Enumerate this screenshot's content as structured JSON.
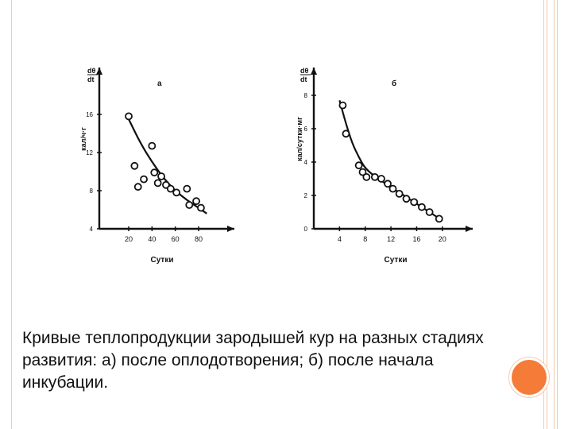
{
  "caption": "Кривые теплопродукции зародышей кур на разных стадиях развития: а) после оплодотворения; б) после начала инкубации.",
  "colors": {
    "accent": "#f47c38",
    "border": "#f5c9ae",
    "ink": "#111111"
  },
  "chart_data": [
    {
      "type": "scatter",
      "title": "а",
      "xlabel": "Сутки",
      "ylabel": "кал/ч·г",
      "ylabel_top": [
        "dθ",
        "dt"
      ],
      "xlim": [
        5,
        95
      ],
      "ylim": [
        4,
        18
      ],
      "x_ticks": [
        20,
        40,
        60,
        80
      ],
      "y_ticks": [
        4,
        8,
        12,
        16
      ],
      "points": [
        {
          "x": 20,
          "y": 15.8
        },
        {
          "x": 25,
          "y": 10.6
        },
        {
          "x": 28,
          "y": 8.4
        },
        {
          "x": 33,
          "y": 9.2
        },
        {
          "x": 40,
          "y": 12.7
        },
        {
          "x": 42,
          "y": 9.9
        },
        {
          "x": 45,
          "y": 8.8
        },
        {
          "x": 48,
          "y": 9.5
        },
        {
          "x": 52,
          "y": 8.6
        },
        {
          "x": 56,
          "y": 8.2
        },
        {
          "x": 61,
          "y": 7.8
        },
        {
          "x": 70,
          "y": 8.2
        },
        {
          "x": 72,
          "y": 6.5
        },
        {
          "x": 78,
          "y": 6.9
        },
        {
          "x": 82,
          "y": 6.2
        }
      ],
      "curve": [
        {
          "x": 20,
          "y": 15.5
        },
        {
          "x": 30,
          "y": 13.0
        },
        {
          "x": 40,
          "y": 11.0
        },
        {
          "x": 50,
          "y": 9.3
        },
        {
          "x": 60,
          "y": 8.0
        },
        {
          "x": 70,
          "y": 7.0
        },
        {
          "x": 80,
          "y": 6.2
        },
        {
          "x": 87,
          "y": 5.6
        }
      ],
      "grid": false
    },
    {
      "type": "scatter",
      "title": "б",
      "xlabel": "Сутки",
      "ylabel": "кал/сутки·мг",
      "ylabel_top": [
        "dθ",
        "dt"
      ],
      "xlim": [
        0,
        22
      ],
      "ylim": [
        0,
        8
      ],
      "x_ticks": [
        4,
        8,
        12,
        16,
        20
      ],
      "y_ticks": [
        0,
        2,
        4,
        6,
        8
      ],
      "points": [
        {
          "x": 4.5,
          "y": 7.4
        },
        {
          "x": 5,
          "y": 5.7
        },
        {
          "x": 7,
          "y": 3.8
        },
        {
          "x": 7.6,
          "y": 3.4
        },
        {
          "x": 8.2,
          "y": 3.1
        },
        {
          "x": 9.5,
          "y": 3.1
        },
        {
          "x": 10.5,
          "y": 3.0
        },
        {
          "x": 11.5,
          "y": 2.7
        },
        {
          "x": 12.3,
          "y": 2.4
        },
        {
          "x": 13.3,
          "y": 2.1
        },
        {
          "x": 14.4,
          "y": 1.8
        },
        {
          "x": 15.6,
          "y": 1.6
        },
        {
          "x": 16.8,
          "y": 1.3
        },
        {
          "x": 18,
          "y": 1.0
        },
        {
          "x": 19.5,
          "y": 0.6
        }
      ],
      "curve": [
        {
          "x": 4,
          "y": 7.7
        },
        {
          "x": 5,
          "y": 6.3
        },
        {
          "x": 6,
          "y": 5.1
        },
        {
          "x": 7,
          "y": 4.3
        },
        {
          "x": 8,
          "y": 3.6
        },
        {
          "x": 10,
          "y": 3.0
        },
        {
          "x": 12,
          "y": 2.5
        },
        {
          "x": 14,
          "y": 2.0
        },
        {
          "x": 16,
          "y": 1.5
        },
        {
          "x": 18,
          "y": 1.0
        },
        {
          "x": 20,
          "y": 0.5
        }
      ],
      "grid": false
    }
  ]
}
